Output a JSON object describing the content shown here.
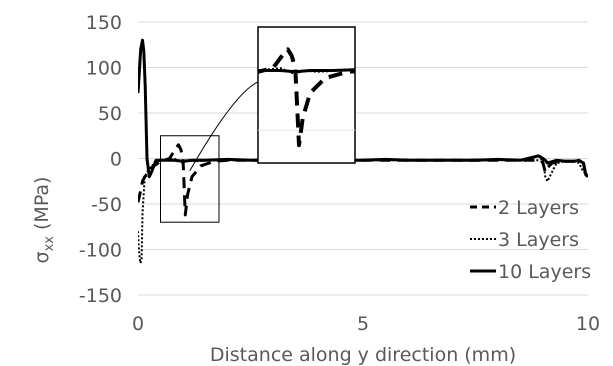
{
  "chart_data": {
    "type": "line",
    "xlabel": "Distance along y direction (mm)",
    "ylabel": "σxx (MPa)",
    "ylabel_main": "σ",
    "ylabel_sub": "xx",
    "ylabel_unit": " (MPa)",
    "xlim": [
      0,
      10
    ],
    "ylim": [
      -150,
      150
    ],
    "x_ticks": [
      0,
      5,
      10
    ],
    "y_ticks": [
      -150,
      -100,
      -50,
      0,
      50,
      100,
      150
    ],
    "grid": "horizontal",
    "legend_position": "lower-right",
    "series": [
      {
        "name": "2 Layers",
        "style": "dashed",
        "x": [
          0.0,
          0.03,
          0.06,
          0.1,
          0.15,
          0.2,
          0.3,
          0.5,
          0.7,
          0.85,
          0.9,
          0.95,
          1.0,
          1.05,
          1.1,
          1.2,
          1.4,
          1.7,
          2.0,
          3.0,
          4.0,
          5.0,
          6.0,
          7.0,
          8.0,
          8.8,
          8.95,
          9.0,
          9.05,
          9.1,
          9.2,
          9.4,
          9.6,
          9.8,
          9.9,
          9.95,
          10.0
        ],
        "y": [
          -48,
          -42,
          -35,
          -25,
          -20,
          -18,
          -10,
          -3,
          0,
          12,
          15,
          10,
          0,
          -62,
          -40,
          -20,
          -8,
          -3,
          -2,
          -2,
          -2,
          -2,
          -2,
          -2,
          -2,
          -2,
          -2,
          -5,
          -15,
          -10,
          -5,
          -3,
          -3,
          -3,
          -5,
          -18,
          -20
        ]
      },
      {
        "name": "3 Layers",
        "style": "dotted",
        "x": [
          0.0,
          0.02,
          0.05,
          0.08,
          0.1,
          0.15,
          0.2,
          0.3,
          0.5,
          0.8,
          1.0,
          1.1,
          1.3,
          1.6,
          2.0,
          3.0,
          4.0,
          5.0,
          6.0,
          7.0,
          8.0,
          8.9,
          9.0,
          9.05,
          9.1,
          9.2,
          9.3,
          9.5,
          9.7,
          9.8,
          9.9,
          10.0
        ],
        "y": [
          -80,
          -100,
          -115,
          -112,
          -60,
          -20,
          -15,
          -8,
          -2,
          0,
          -5,
          -2,
          -3,
          -2,
          -2,
          -2,
          -2,
          -2,
          -2,
          -2,
          -2,
          -2,
          0,
          -20,
          -25,
          -15,
          -5,
          -3,
          -3,
          -5,
          -15,
          -18
        ]
      },
      {
        "name": "10 Layers",
        "style": "solid",
        "x": [
          0.0,
          0.03,
          0.06,
          0.1,
          0.13,
          0.16,
          0.2,
          0.25,
          0.3,
          0.4,
          0.6,
          0.8,
          1.0,
          1.2,
          1.5,
          2.0,
          2.5,
          3.0,
          3.5,
          4.0,
          4.5,
          5.0,
          5.5,
          6.0,
          6.5,
          7.0,
          7.5,
          8.0,
          8.5,
          8.9,
          9.0,
          9.05,
          9.1,
          9.3,
          9.5,
          9.7,
          9.8,
          9.9,
          9.95,
          10.0
        ],
        "y": [
          72,
          95,
          120,
          130,
          118,
          80,
          0,
          -20,
          -15,
          -2,
          -2,
          -2,
          -3,
          -2,
          -2,
          -1,
          -2,
          -2,
          -1,
          -2,
          -2,
          -2,
          -1,
          -2,
          -2,
          -2,
          -2,
          -1,
          -2,
          3,
          0,
          -2,
          -5,
          -2,
          -3,
          -3,
          -2,
          -5,
          -18,
          -20
        ]
      }
    ],
    "inset": {
      "x_range": [
        0.5,
        1.8
      ],
      "y_range": [
        -70,
        25
      ],
      "gridline_y": -50
    }
  }
}
